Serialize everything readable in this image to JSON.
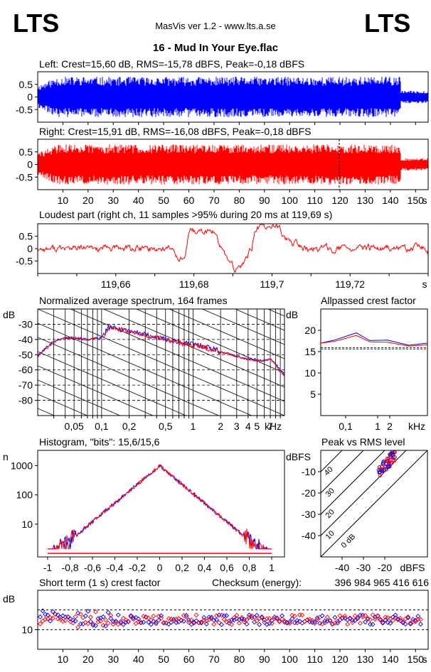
{
  "header": {
    "logo_left": "LTS",
    "logo_right": "LTS",
    "app_title": "MasVis ver 1.2 - www.lts.a.se",
    "file_title": "16 - Mud In Your Eye.flac"
  },
  "checksum_label": "Checksum (energy):",
  "checksum_value": "396 984 965 416 616",
  "colors": {
    "left": "#0000ff",
    "right": "#ff0000",
    "background": "#ffffff",
    "axis": "#000000"
  },
  "chart_data": [
    {
      "id": "left-waveform",
      "type": "area",
      "title": "Left: Crest=15,60 dB, RMS=-15,78 dBFS, Peak=-0,18 dBFS",
      "y_ticks": [
        "0.5",
        "0",
        "-0.5"
      ],
      "ylim": [
        -1,
        1
      ],
      "xlim": [
        0,
        155
      ],
      "series": [
        {
          "color": "#0000ff"
        }
      ]
    },
    {
      "id": "right-waveform",
      "type": "area",
      "title": "Right: Crest=15,91 dB, RMS=-16,08 dBFS, Peak=-0,18 dBFS",
      "y_ticks": [
        "0.5",
        "0",
        "-0.5"
      ],
      "ylim": [
        -1,
        1
      ],
      "xlim": [
        0,
        155
      ],
      "x_ticks": [
        "10",
        "20",
        "30",
        "40",
        "50",
        "60",
        "70",
        "80",
        "90",
        "100",
        "110",
        "120",
        "130",
        "140",
        "150"
      ],
      "x_unit": "s",
      "marker_x": 119.69,
      "series": [
        {
          "color": "#ff0000"
        }
      ]
    },
    {
      "id": "loudest-part",
      "type": "line",
      "title": "Loudest part (right ch, 11 samples >95% during 20 ms at 119,69 s)",
      "y_ticks": [
        "0.5",
        "0",
        "-0.5"
      ],
      "ylim": [
        -1,
        1
      ],
      "xlim": [
        119.64,
        119.74
      ],
      "x_ticks": [
        "119,66",
        "119,68",
        "119,7",
        "119,72"
      ],
      "x_unit": "s",
      "series": [
        {
          "color": "#ff0000"
        }
      ]
    },
    {
      "id": "spectrum",
      "type": "line",
      "title": "Normalized average spectrum, 164 frames",
      "ylabel": "dB",
      "y_ticks": [
        "-30",
        "-40",
        "-50",
        "-60",
        "-70",
        "-80"
      ],
      "ylim": [
        -90,
        -20
      ],
      "x_ticks": [
        "0,05",
        "0,1",
        "0,2",
        "0,5",
        "1",
        "2",
        "3",
        "4",
        "5",
        "7"
      ],
      "x_unit": "kHz",
      "log_x": true,
      "series": [
        {
          "color": "#0000ff",
          "x": [
            0.02,
            0.025,
            0.03,
            0.04,
            0.05,
            0.07,
            0.1,
            0.12,
            0.15,
            0.2,
            0.3,
            0.5,
            0.7,
            1,
            1.5,
            2,
            3,
            4,
            5,
            6,
            7,
            8,
            9,
            10
          ],
          "y": [
            -51,
            -45,
            -41,
            -39,
            -39,
            -40,
            -39,
            -32,
            -33,
            -34,
            -37,
            -40,
            -42,
            -43,
            -45,
            -48,
            -51,
            -53,
            -53,
            -54,
            -53,
            -56,
            -60,
            -63
          ]
        },
        {
          "color": "#ff0000",
          "x": [
            0.02,
            0.025,
            0.03,
            0.04,
            0.05,
            0.07,
            0.1,
            0.12,
            0.15,
            0.2,
            0.3,
            0.5,
            0.7,
            1,
            1.5,
            2,
            3,
            4,
            5,
            6,
            7,
            8,
            9,
            10
          ],
          "y": [
            -51,
            -46,
            -42,
            -39,
            -39,
            -40,
            -39,
            -32,
            -33,
            -35,
            -38,
            -40,
            -42,
            -44,
            -46,
            -48,
            -51,
            -53,
            -54,
            -54,
            -53,
            -57,
            -61,
            -64
          ]
        }
      ]
    },
    {
      "id": "allpassed-crest",
      "type": "line",
      "title": "Allpassed crest factor",
      "ylabel": "dB",
      "y_ticks": [
        "20",
        "15",
        "10",
        "5"
      ],
      "ylim": [
        0,
        25
      ],
      "x_ticks": [
        "0,1",
        "1",
        "2"
      ],
      "x_unit": "kHz",
      "series": [
        {
          "color": "#0000ff",
          "y": [
            17.0,
            17.7,
            19.4,
            17.6,
            17.7,
            16.5,
            17.0
          ],
          "ref": 15.9
        },
        {
          "color": "#ff0000",
          "y": [
            17.0,
            17.4,
            18.8,
            17.3,
            17.2,
            16.3,
            16.6
          ],
          "ref": 15.6
        }
      ]
    },
    {
      "id": "histogram",
      "type": "line",
      "title": "Histogram, \"bits\": 15,6/15,6",
      "ylabel": "n",
      "y_ticks": [
        "1000",
        "100",
        "10"
      ],
      "x_ticks": [
        "-1",
        "-0,8",
        "-0,6",
        "-0,4",
        "-0,2",
        "0",
        "0,2",
        "0,4",
        "0,6",
        "0,8",
        "1"
      ],
      "xlim": [
        -1,
        1
      ],
      "series": [
        {
          "color": "#0000ff"
        },
        {
          "color": "#ff0000"
        }
      ]
    },
    {
      "id": "peak-vs-rms",
      "type": "scatter",
      "title": "Peak vs RMS level",
      "ylabel": "dBFS",
      "xlabel": "dBFS",
      "y_ticks": [
        "-10",
        "-20",
        "-30",
        "-40"
      ],
      "x_ticks": [
        "-40",
        "-30",
        "-20"
      ],
      "diagonal_labels": [
        "40",
        "30",
        "20",
        "10",
        "0 dB"
      ],
      "series": [
        {
          "color": "#0000ff"
        },
        {
          "color": "#ff0000"
        }
      ]
    },
    {
      "id": "short-term-crest",
      "type": "scatter",
      "title": "Short term (1 s) crest factor",
      "ylabel": "dB",
      "y_ticks": [
        "10"
      ],
      "x_ticks": [
        "10",
        "20",
        "30",
        "40",
        "50",
        "60",
        "70",
        "80",
        "90",
        "100",
        "110",
        "120",
        "130",
        "140",
        "150"
      ],
      "x_unit": "s",
      "xlim": [
        0,
        155
      ],
      "series": [
        {
          "color": "#0000ff"
        },
        {
          "color": "#ff0000"
        }
      ]
    }
  ]
}
